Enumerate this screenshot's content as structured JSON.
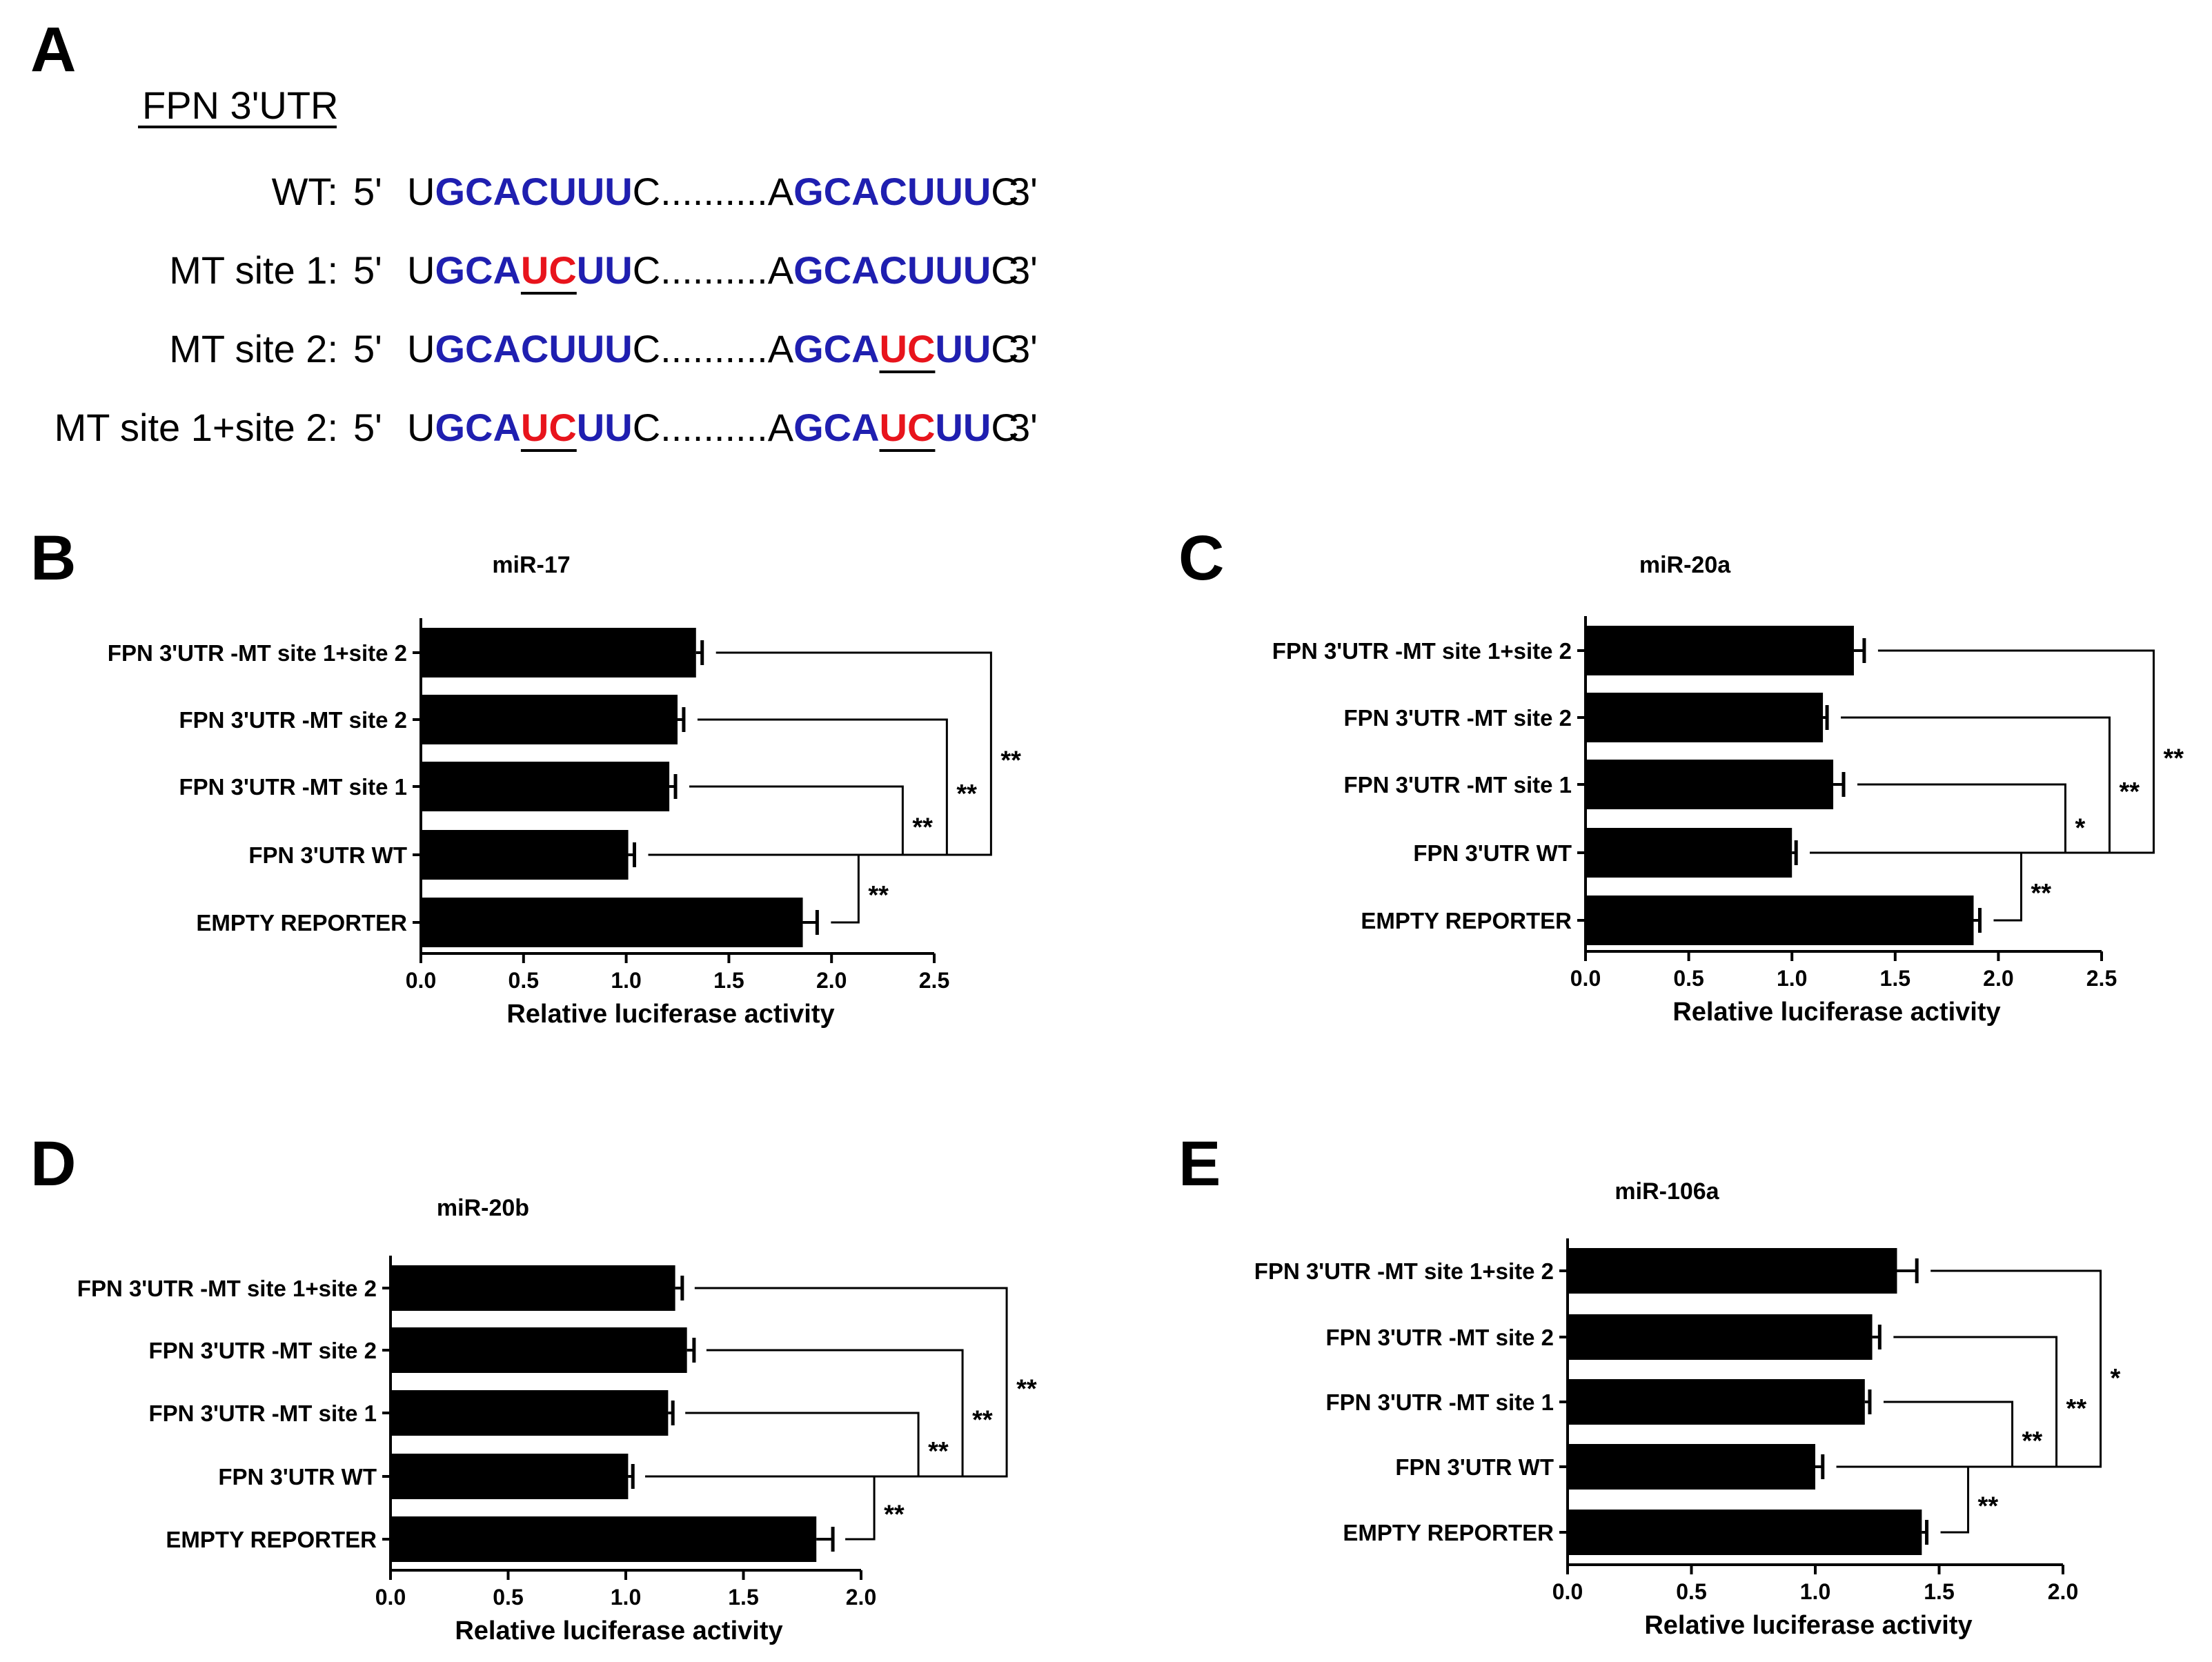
{
  "panel_a": {
    "letter": "A",
    "title": "FPN 3'UTR",
    "rows": [
      {
        "label": "WT:",
        "five": "5'",
        "three": "3'",
        "segments": [
          [
            "U",
            "black"
          ],
          [
            "GCACUUU",
            "blue"
          ],
          [
            "C..........A",
            "black"
          ],
          [
            "GCACUUU",
            "blue"
          ],
          [
            "C",
            "black"
          ]
        ]
      },
      {
        "label": "MT site 1:",
        "five": "5'",
        "three": "3'",
        "segments": [
          [
            "U",
            "black"
          ],
          [
            "GCA",
            "blue"
          ],
          [
            "UC",
            "red"
          ],
          [
            "UU",
            "blue"
          ],
          [
            "C..........A",
            "black"
          ],
          [
            "GCACUUU",
            "blue"
          ],
          [
            "C",
            "black"
          ]
        ]
      },
      {
        "label": "MT site 2:",
        "five": "5'",
        "three": "3'",
        "segments": [
          [
            "U",
            "black"
          ],
          [
            "GCACUUU",
            "blue"
          ],
          [
            "C..........A",
            "black"
          ],
          [
            "GCA",
            "blue"
          ],
          [
            "UC",
            "red"
          ],
          [
            "UU",
            "blue"
          ],
          [
            "C",
            "black"
          ]
        ]
      },
      {
        "label": "MT site 1+site 2:",
        "five": "5'",
        "three": "3'",
        "segments": [
          [
            "U",
            "black"
          ],
          [
            "GCA",
            "blue"
          ],
          [
            "UC",
            "red"
          ],
          [
            "UU",
            "blue"
          ],
          [
            "C..........A",
            "black"
          ],
          [
            "GCA",
            "blue"
          ],
          [
            "UC",
            "red"
          ],
          [
            "UU",
            "blue"
          ],
          [
            "C",
            "black"
          ]
        ]
      }
    ]
  },
  "colors": {
    "blue": "#1f1fb0",
    "red": "#e8141c",
    "bar": "#000000"
  },
  "chart_data": [
    {
      "letter": "B",
      "type": "bar",
      "orientation": "horizontal",
      "title": "miR-17",
      "xlabel": "Relative luciferase activity",
      "xlim": [
        0,
        2.5
      ],
      "xticks": [
        "0.0",
        "0.5",
        "1.0",
        "1.5",
        "2.0",
        "2.5"
      ],
      "categories": [
        "FPN 3'UTR -MT site 1+site 2",
        "FPN 3'UTR -MT site 2",
        "FPN 3'UTR -MT site 1",
        "FPN 3'UTR WT",
        "EMPTY REPORTER"
      ],
      "values": [
        1.34,
        1.25,
        1.21,
        1.01,
        1.86
      ],
      "errors": [
        0.03,
        0.03,
        0.03,
        0.03,
        0.07
      ],
      "significance": [
        {
          "from": "FPN 3'UTR WT",
          "to": "EMPTY REPORTER",
          "label": "**"
        },
        {
          "from": "FPN 3'UTR -MT site 1",
          "to": "FPN 3'UTR WT",
          "label": "**"
        },
        {
          "from": "FPN 3'UTR -MT site 2",
          "to": "FPN 3'UTR WT",
          "label": "**"
        },
        {
          "from": "FPN 3'UTR -MT site 1+site 2",
          "to": "FPN 3'UTR WT",
          "label": "**"
        }
      ]
    },
    {
      "letter": "C",
      "type": "bar",
      "orientation": "horizontal",
      "title": "miR-20a",
      "xlabel": "Relative luciferase activity",
      "xlim": [
        0,
        2.5
      ],
      "xticks": [
        "0.0",
        "0.5",
        "1.0",
        "1.5",
        "2.0",
        "2.5"
      ],
      "categories": [
        "FPN 3'UTR -MT site 1+site 2",
        "FPN 3'UTR -MT site 2",
        "FPN 3'UTR -MT site 1",
        "FPN 3'UTR WT",
        "EMPTY REPORTER"
      ],
      "values": [
        1.3,
        1.15,
        1.2,
        1.0,
        1.88
      ],
      "errors": [
        0.05,
        0.02,
        0.05,
        0.02,
        0.03
      ],
      "significance": [
        {
          "from": "FPN 3'UTR WT",
          "to": "EMPTY REPORTER",
          "label": "**"
        },
        {
          "from": "FPN 3'UTR -MT site 1",
          "to": "FPN 3'UTR WT",
          "label": "*"
        },
        {
          "from": "FPN 3'UTR -MT site 2",
          "to": "FPN 3'UTR WT",
          "label": "**"
        },
        {
          "from": "FPN 3'UTR -MT site 1+site 2",
          "to": "FPN 3'UTR WT",
          "label": "**"
        }
      ]
    },
    {
      "letter": "D",
      "type": "bar",
      "orientation": "horizontal",
      "title": "miR-20b",
      "xlabel": "Relative luciferase activity",
      "xlim": [
        0,
        2.0
      ],
      "xticks": [
        "0.0",
        "0.5",
        "1.0",
        "1.5",
        "2.0"
      ],
      "categories": [
        "FPN 3'UTR -MT site 1+site 2",
        "FPN 3'UTR -MT site 2",
        "FPN 3'UTR -MT site 1",
        "FPN 3'UTR WT",
        "EMPTY REPORTER"
      ],
      "values": [
        1.21,
        1.26,
        1.18,
        1.01,
        1.81
      ],
      "errors": [
        0.03,
        0.03,
        0.02,
        0.02,
        0.07
      ],
      "significance": [
        {
          "from": "FPN 3'UTR WT",
          "to": "EMPTY REPORTER",
          "label": "**"
        },
        {
          "from": "FPN 3'UTR -MT site 1",
          "to": "FPN 3'UTR WT",
          "label": "**"
        },
        {
          "from": "FPN 3'UTR -MT site 2",
          "to": "FPN 3'UTR WT",
          "label": "**"
        },
        {
          "from": "FPN 3'UTR -MT site 1+site 2",
          "to": "FPN 3'UTR WT",
          "label": "**"
        }
      ]
    },
    {
      "letter": "E",
      "type": "bar",
      "orientation": "horizontal",
      "title": "miR-106a",
      "xlabel": "Relative luciferase activity",
      "xlim": [
        0,
        2.0
      ],
      "xticks": [
        "0.0",
        "0.5",
        "1.0",
        "1.5",
        "2.0"
      ],
      "categories": [
        "FPN 3'UTR -MT site 1+site 2",
        "FPN 3'UTR -MT site 2",
        "FPN 3'UTR -MT site 1",
        "FPN 3'UTR WT",
        "EMPTY REPORTER"
      ],
      "values": [
        1.33,
        1.23,
        1.2,
        1.0,
        1.43
      ],
      "errors": [
        0.08,
        0.03,
        0.02,
        0.03,
        0.02
      ],
      "significance": [
        {
          "from": "FPN 3'UTR WT",
          "to": "EMPTY REPORTER",
          "label": "**"
        },
        {
          "from": "FPN 3'UTR -MT site 1",
          "to": "FPN 3'UTR WT",
          "label": "**"
        },
        {
          "from": "FPN 3'UTR -MT site 2",
          "to": "FPN 3'UTR WT",
          "label": "**"
        },
        {
          "from": "FPN 3'UTR -MT site 1+site 2",
          "to": "FPN 3'UTR WT",
          "label": "*"
        }
      ]
    }
  ]
}
